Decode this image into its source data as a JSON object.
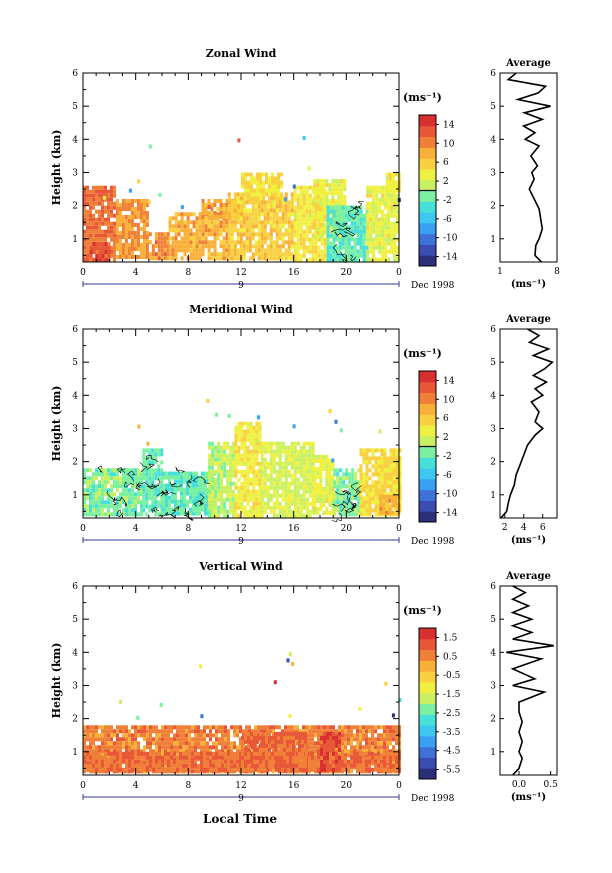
{
  "figure": {
    "xlabel": "Local Time"
  },
  "panels": [
    {
      "title": "Zonal Wind",
      "ylabel": "Height (km)",
      "unit": "(ms⁻¹)",
      "date_label": "Dec 1998",
      "day_label": "9",
      "colorbar_ticks": [
        "14",
        "10",
        "6",
        "2",
        "-2",
        "-6",
        "-10",
        "-14"
      ],
      "avg_title": "Average",
      "avg_xlabel": "(ms⁻¹)",
      "avg_xticks": [
        "1",
        "8"
      ]
    },
    {
      "title": "Meridional Wind",
      "ylabel": "Height (km)",
      "unit": "(ms⁻¹)",
      "date_label": "Dec 1998",
      "day_label": "9",
      "colorbar_ticks": [
        "14",
        "10",
        "6",
        "2",
        "-2",
        "-6",
        "-10",
        "-14"
      ],
      "avg_title": "Average",
      "avg_xlabel": "(ms⁻¹)",
      "avg_xticks": [
        "2",
        "4",
        "6"
      ]
    },
    {
      "title": "Vertical Wind",
      "ylabel": "Height (km)",
      "unit": "(ms⁻¹)",
      "date_label": "Dec 1998",
      "day_label": "9",
      "colorbar_ticks": [
        "1.5",
        "0.5",
        "-0.5",
        "-1.5",
        "-2.5",
        "-3.5",
        "-4.5",
        "-5.5"
      ],
      "avg_title": "Average",
      "avg_xlabel": "(ms⁻¹)",
      "avg_xticks": [
        "0.0",
        "0.5"
      ]
    }
  ],
  "chart_data": [
    {
      "type": "heatmap",
      "title": "Zonal Wind",
      "xlabel": "",
      "ylabel": "Height (km)",
      "x_ticks": [
        "0",
        "4",
        "8",
        "12",
        "16",
        "20",
        "0"
      ],
      "xlim": [
        0,
        24
      ],
      "y_ticks": [
        "1",
        "2",
        "3",
        "4",
        "5",
        "6"
      ],
      "ylim": [
        0.3,
        6
      ],
      "colorbar": {
        "min": -16,
        "max": 16,
        "ticks": [
          14,
          10,
          6,
          2,
          -2,
          -6,
          -10,
          -14
        ],
        "colors": [
          "#2b2f7a",
          "#3a4db0",
          "#3f72d8",
          "#3aa0f0",
          "#3cc8f0",
          "#47e0d8",
          "#7af0a0",
          "#c8f060",
          "#f0f040",
          "#f8d040",
          "#f8b038",
          "#f08038",
          "#e85838",
          "#d83030"
        ]
      },
      "contour_level": 0,
      "regions": [
        {
          "t": [
            0,
            2.5
          ],
          "h": [
            0.4,
            2.6
          ],
          "v": 11
        },
        {
          "t": [
            0.5,
            2
          ],
          "h": [
            0.4,
            0.9
          ],
          "v": 13
        },
        {
          "t": [
            2.5,
            5
          ],
          "h": [
            0.4,
            2.2
          ],
          "v": 9
        },
        {
          "t": [
            5,
            6.5
          ],
          "h": [
            0.4,
            1.2
          ],
          "v": 10
        },
        {
          "t": [
            6.5,
            11
          ],
          "h": [
            0.4,
            1.8
          ],
          "v": 8
        },
        {
          "t": [
            9,
            12
          ],
          "h": [
            1.6,
            2.2
          ],
          "v": 8
        },
        {
          "t": [
            11,
            16
          ],
          "h": [
            0.4,
            2.4
          ],
          "v": 6
        },
        {
          "t": [
            12,
            15
          ],
          "h": [
            2.2,
            3.0
          ],
          "v": 5
        },
        {
          "t": [
            16,
            18.5
          ],
          "h": [
            0.4,
            2.6
          ],
          "v": 4
        },
        {
          "t": [
            17.5,
            20
          ],
          "h": [
            1.0,
            2.8
          ],
          "v": 3
        },
        {
          "t": [
            18.5,
            21.5
          ],
          "h": [
            0.4,
            2.0
          ],
          "v": -2
        },
        {
          "t": [
            21.5,
            24
          ],
          "h": [
            0.4,
            2.6
          ],
          "v": 3
        },
        {
          "t": [
            23,
            24
          ],
          "h": [
            2.4,
            3.0
          ],
          "v": 4
        }
      ],
      "average_profile": {
        "xlim": [
          1,
          8
        ],
        "x_ticks": [
          1,
          8
        ],
        "heights": [
          0.3,
          0.5,
          0.8,
          1.0,
          1.3,
          1.6,
          1.9,
          2.2,
          2.5,
          2.8,
          3.0,
          3.2,
          3.5,
          3.8,
          4.0,
          4.2,
          4.4,
          4.6,
          4.8,
          5.0,
          5.2,
          5.4,
          5.6,
          5.8,
          6.0
        ],
        "values": [
          6.1,
          5.3,
          5.4,
          5.8,
          6.2,
          6.0,
          5.8,
          5.2,
          4.6,
          5.2,
          4.9,
          5.6,
          4.8,
          5.8,
          4.1,
          5.3,
          3.9,
          6.2,
          4.0,
          7.2,
          3.2,
          5.7,
          6.6,
          2.0,
          3.0
        ]
      }
    },
    {
      "type": "heatmap",
      "title": "Meridional Wind",
      "xlabel": "",
      "ylabel": "Height (km)",
      "x_ticks": [
        "0",
        "4",
        "8",
        "12",
        "16",
        "20",
        "0"
      ],
      "xlim": [
        0,
        24
      ],
      "y_ticks": [
        "1",
        "2",
        "3",
        "4",
        "5",
        "6"
      ],
      "ylim": [
        0.3,
        6
      ],
      "colorbar": {
        "min": -16,
        "max": 16,
        "ticks": [
          14,
          10,
          6,
          2,
          -2,
          -6,
          -10,
          -14
        ],
        "colors": [
          "#2b2f7a",
          "#3a4db0",
          "#3f72d8",
          "#3aa0f0",
          "#3cc8f0",
          "#47e0d8",
          "#7af0a0",
          "#c8f060",
          "#f0f040",
          "#f8d040",
          "#f8b038",
          "#f08038",
          "#e85838",
          "#d83030"
        ]
      },
      "contour_level": 0,
      "regions": [
        {
          "t": [
            0,
            4.5
          ],
          "h": [
            0.4,
            1.8
          ],
          "v": -1
        },
        {
          "t": [
            4.5,
            6
          ],
          "h": [
            0.4,
            2.4
          ],
          "v": -2
        },
        {
          "t": [
            6,
            10
          ],
          "h": [
            0.4,
            1.7
          ],
          "v": -2
        },
        {
          "t": [
            9.5,
            11.5
          ],
          "h": [
            0.4,
            2.6
          ],
          "v": 1
        },
        {
          "t": [
            11.5,
            13.5
          ],
          "h": [
            0.4,
            3.2
          ],
          "v": 4
        },
        {
          "t": [
            13.5,
            17.5
          ],
          "h": [
            0.4,
            2.6
          ],
          "v": 2
        },
        {
          "t": [
            17.5,
            19
          ],
          "h": [
            0.4,
            2.2
          ],
          "v": 3
        },
        {
          "t": [
            19,
            21
          ],
          "h": [
            0.4,
            1.8
          ],
          "v": -1
        },
        {
          "t": [
            21,
            24
          ],
          "h": [
            0.4,
            2.4
          ],
          "v": 5
        },
        {
          "t": [
            22.5,
            24
          ],
          "h": [
            0.4,
            1.0
          ],
          "v": 8
        }
      ],
      "average_profile": {
        "xlim": [
          1.5,
          7.5
        ],
        "x_ticks": [
          2,
          4,
          6
        ],
        "heights": [
          0.3,
          0.5,
          0.8,
          1.0,
          1.3,
          1.6,
          1.9,
          2.2,
          2.5,
          2.8,
          3.0,
          3.2,
          3.5,
          3.8,
          4.0,
          4.2,
          4.4,
          4.6,
          4.8,
          5.0,
          5.2,
          5.4,
          5.6,
          5.8,
          6.0
        ],
        "values": [
          1.6,
          2.2,
          2.4,
          2.6,
          3.0,
          3.2,
          3.6,
          4.0,
          4.4,
          5.2,
          6.0,
          5.2,
          5.6,
          4.8,
          6.0,
          5.2,
          6.4,
          5.0,
          6.2,
          7.0,
          5.0,
          6.6,
          4.6,
          5.6,
          4.4
        ]
      }
    },
    {
      "type": "heatmap",
      "title": "Vertical Wind",
      "xlabel": "Local Time",
      "ylabel": "Height (km)",
      "x_ticks": [
        "0",
        "4",
        "8",
        "12",
        "16",
        "20",
        "0"
      ],
      "xlim": [
        0,
        24
      ],
      "y_ticks": [
        "1",
        "2",
        "3",
        "4",
        "5",
        "6"
      ],
      "ylim": [
        0.3,
        6
      ],
      "colorbar": {
        "min": -6,
        "max": 2,
        "ticks": [
          1.5,
          0.5,
          -0.5,
          -1.5,
          -2.5,
          -3.5,
          -4.5,
          -5.5
        ],
        "colors": [
          "#2b2f7a",
          "#3a4db0",
          "#3f72d8",
          "#3aa0f0",
          "#3cc8f0",
          "#47e0d8",
          "#7af0a0",
          "#c8f060",
          "#f0f040",
          "#f8d040",
          "#f8b038",
          "#f08038",
          "#e85838",
          "#d83030"
        ]
      },
      "regions": [
        {
          "t": [
            0,
            24
          ],
          "h": [
            0.4,
            1.8
          ],
          "v": 0.6
        },
        {
          "t": [
            0,
            24
          ],
          "h": [
            0.4,
            1.0
          ],
          "v": 0.8
        },
        {
          "t": [
            18,
            19.5
          ],
          "h": [
            0.4,
            1.6
          ],
          "v": 1.3
        },
        {
          "t": [
            12,
            17
          ],
          "h": [
            0.6,
            1.6
          ],
          "v": 0.9
        }
      ],
      "average_profile": {
        "xlim": [
          -0.3,
          0.6
        ],
        "x_ticks": [
          0.0,
          0.5
        ],
        "heights": [
          0.3,
          0.5,
          0.8,
          1.0,
          1.3,
          1.6,
          1.9,
          2.2,
          2.5,
          2.8,
          3.0,
          3.2,
          3.5,
          3.8,
          4.0,
          4.2,
          4.4,
          4.6,
          4.8,
          5.0,
          5.2,
          5.4,
          5.6,
          5.8,
          6.0
        ],
        "values": [
          -0.1,
          0.0,
          0.05,
          0.0,
          0.05,
          0.0,
          0.05,
          0.0,
          0.0,
          0.4,
          -0.1,
          0.25,
          -0.1,
          0.35,
          -0.2,
          0.55,
          -0.1,
          0.2,
          -0.1,
          0.2,
          -0.1,
          0.15,
          -0.1,
          0.1,
          -0.1
        ]
      }
    }
  ]
}
